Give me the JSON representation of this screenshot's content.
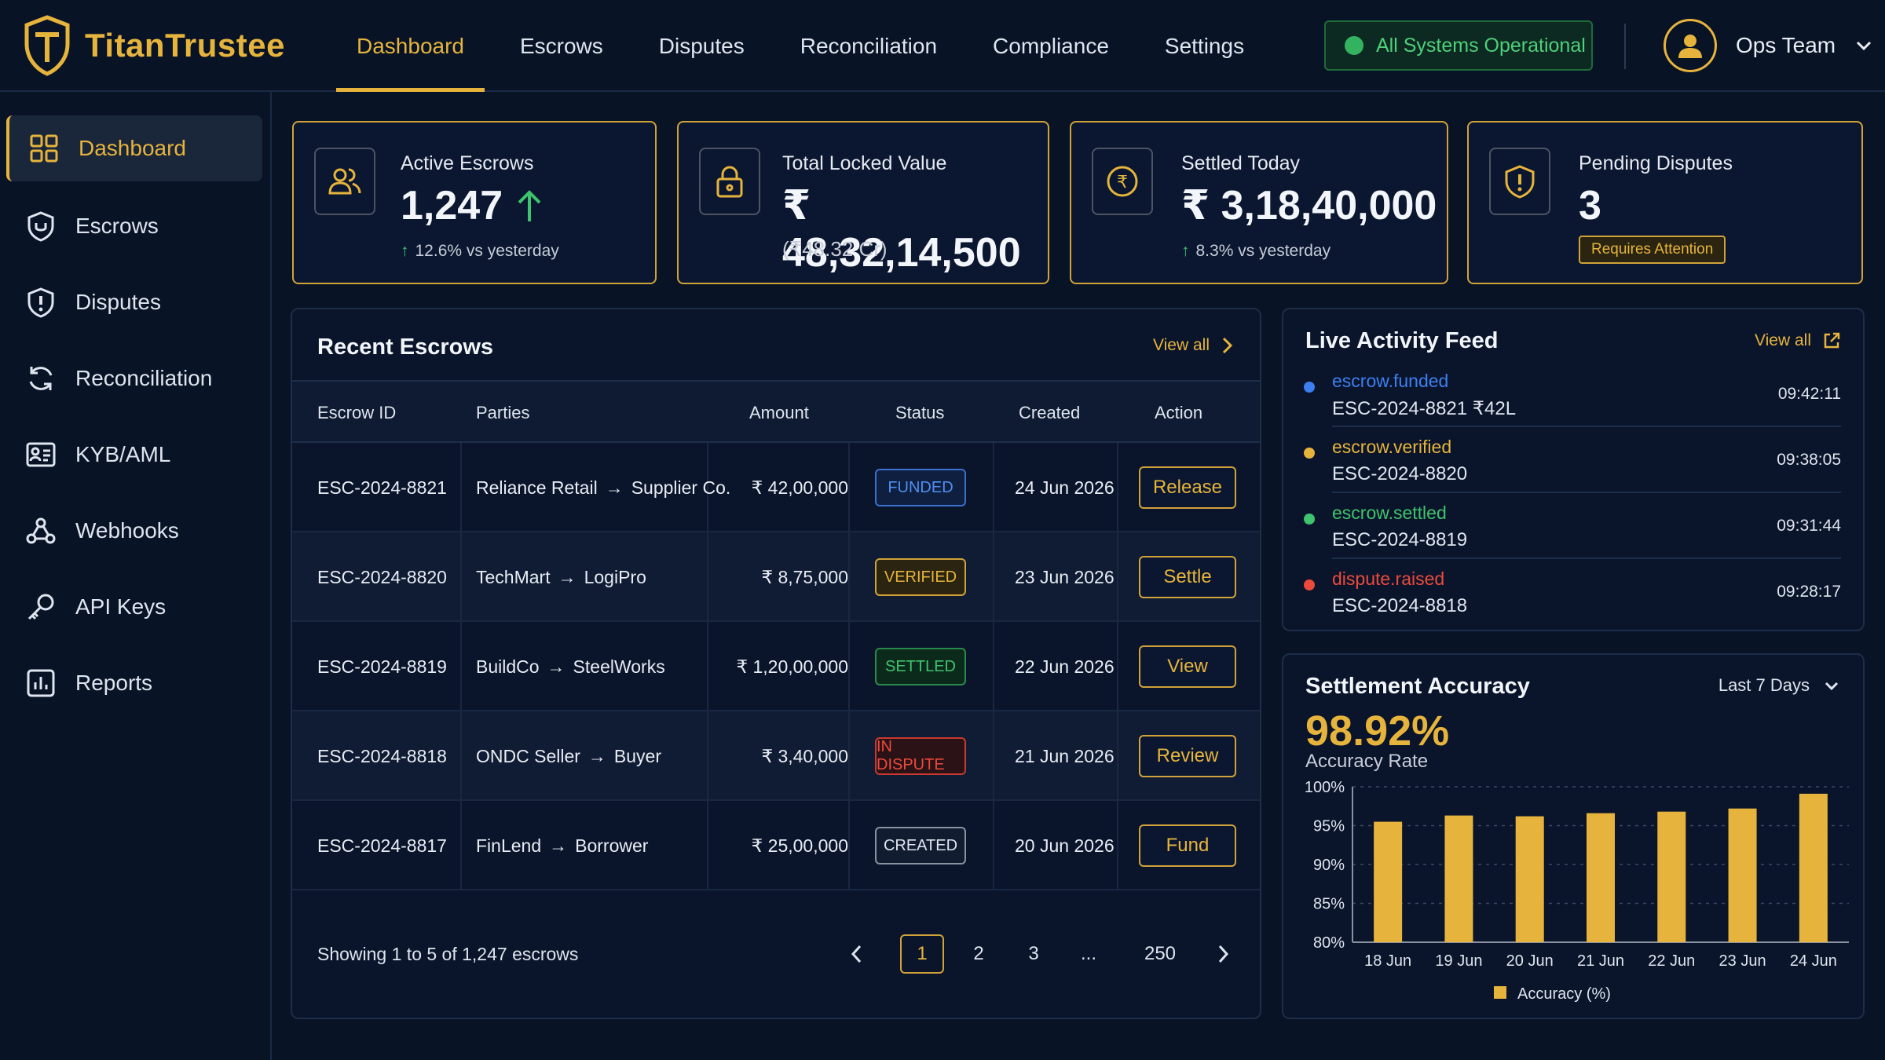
{
  "brand": {
    "name": "TitanTrustee"
  },
  "nav": {
    "items": [
      "Dashboard",
      "Escrows",
      "Disputes",
      "Reconciliation",
      "Compliance",
      "Settings"
    ],
    "active": "Dashboard"
  },
  "system_status": "All Systems Operational",
  "user": {
    "name": "Ops Team"
  },
  "sidebar": {
    "items": [
      {
        "label": "Dashboard",
        "icon": "grid-icon"
      },
      {
        "label": "Escrows",
        "icon": "shield-check-icon"
      },
      {
        "label": "Disputes",
        "icon": "shield-alert-icon"
      },
      {
        "label": "Reconciliation",
        "icon": "refresh-icon"
      },
      {
        "label": "KYB/AML",
        "icon": "id-card-icon"
      },
      {
        "label": "Webhooks",
        "icon": "webhook-icon"
      },
      {
        "label": "API Keys",
        "icon": "key-icon"
      },
      {
        "label": "Reports",
        "icon": "bar-report-icon"
      }
    ]
  },
  "stats": [
    {
      "label": "Active Escrows",
      "value": "1,247",
      "sub": "12.6% vs yesterday"
    },
    {
      "label": "Total Locked Value",
      "value": "₹ 48,32,14,500",
      "sub": "(₹48.32 Cr)"
    },
    {
      "label": "Settled Today",
      "value": "₹ 3,18,40,000",
      "sub": "8.3% vs yesterday"
    },
    {
      "label": "Pending Disputes",
      "value": "3",
      "badge": "Requires Attention"
    }
  ],
  "recent": {
    "title": "Recent Escrows",
    "view_all": "View all",
    "columns": [
      "Escrow ID",
      "Parties",
      "Amount",
      "Status",
      "Created",
      "Action"
    ],
    "rows": [
      {
        "id": "ESC-2024-8821",
        "from": "Reliance Retail",
        "to": "Supplier Co.",
        "amount": "₹ 42,00,000",
        "status": "FUNDED",
        "created": "24 Jun 2026",
        "action": "Release"
      },
      {
        "id": "ESC-2024-8820",
        "from": "TechMart",
        "to": "LogiPro",
        "amount": "₹ 8,75,000",
        "status": "VERIFIED",
        "created": "23 Jun 2026",
        "action": "Settle"
      },
      {
        "id": "ESC-2024-8819",
        "from": "BuildCo",
        "to": "SteelWorks",
        "amount": "₹ 1,20,00,000",
        "status": "SETTLED",
        "created": "22 Jun 2026",
        "action": "View"
      },
      {
        "id": "ESC-2024-8818",
        "from": "ONDC Seller",
        "to": "Buyer",
        "amount": "₹ 3,40,000",
        "status": "IN DISPUTE",
        "created": "21 Jun 2026",
        "action": "Review"
      },
      {
        "id": "ESC-2024-8817",
        "from": "FinLend",
        "to": "Borrower",
        "amount": "₹ 25,00,000",
        "status": "CREATED",
        "created": "20 Jun 2026",
        "action": "Fund"
      }
    ],
    "showing": "Showing 1 to 5 of 1,247 escrows",
    "pages": [
      "1",
      "2",
      "3",
      "...",
      "250"
    ],
    "current_page": "1"
  },
  "feed": {
    "title": "Live Activity Feed",
    "view_all": "View all",
    "items": [
      {
        "event": "escrow.funded",
        "ref": "ESC-2024-8821  ₹42L",
        "time": "09:42:11",
        "color": "#3d7ff0"
      },
      {
        "event": "escrow.verified",
        "ref": "ESC-2024-8820",
        "time": "09:38:05",
        "color": "#e6b43c"
      },
      {
        "event": "escrow.settled",
        "ref": "ESC-2024-8819",
        "time": "09:31:44",
        "color": "#3ec46d"
      },
      {
        "event": "dispute.raised",
        "ref": "ESC-2024-8818",
        "time": "09:28:17",
        "color": "#ec4a3c"
      }
    ]
  },
  "accuracy": {
    "title": "Settlement Accuracy",
    "range": "Last 7 Days",
    "value": "98.92%",
    "value_label": "Accuracy Rate"
  },
  "chart_data": {
    "type": "bar",
    "categories": [
      "18 Jun",
      "19 Jun",
      "20 Jun",
      "21 Jun",
      "22 Jun",
      "23 Jun",
      "24 Jun"
    ],
    "series": [
      {
        "name": "Accuracy (%)",
        "values": [
          95.5,
          96.3,
          96.2,
          96.6,
          96.8,
          97.2,
          99.1
        ]
      }
    ],
    "ylim": [
      80,
      100
    ],
    "yticks": [
      "80%",
      "85%",
      "90%",
      "95%",
      "100%"
    ],
    "grid": true,
    "legend": "bottom",
    "color": "#e6b43c"
  }
}
